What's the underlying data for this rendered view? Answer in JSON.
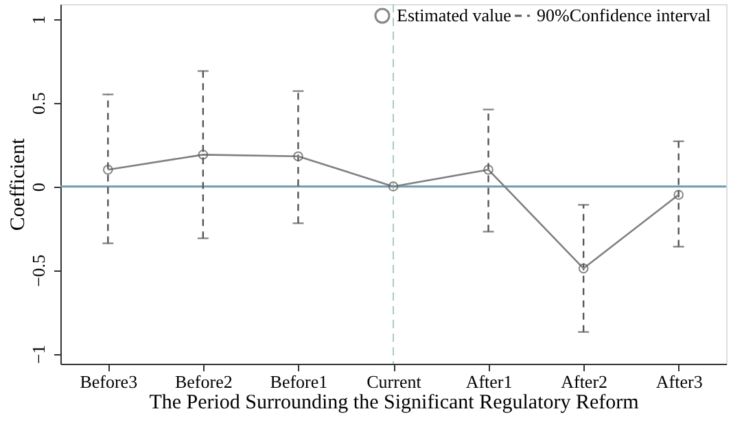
{
  "chart_data": {
    "type": "line",
    "xlabel": "The Period Surrounding the Significant Regulatory Reform",
    "ylabel": "Coefficient",
    "categories": [
      "Before3",
      "Before2",
      "Before1",
      "Current",
      "After1",
      "After2",
      "After3"
    ],
    "series": [
      {
        "name": "Estimated value",
        "color": "#808080",
        "values": [
          0.1,
          0.19,
          0.18,
          0.0,
          0.1,
          -0.49,
          -0.05
        ],
        "errors": [
          [
            -0.34,
            0.55
          ],
          [
            -0.31,
            0.69
          ],
          [
            -0.22,
            0.57
          ],
          null,
          [
            -0.27,
            0.46
          ],
          [
            -0.87,
            -0.11
          ],
          [
            -0.36,
            0.27
          ]
        ]
      }
    ],
    "annotations": [
      "90%Confidence interval"
    ],
    "ylim": [
      -1.06,
      1.09
    ],
    "yticks": [
      -1,
      -0.5,
      0,
      0.5,
      1
    ],
    "ref_lines": [
      {
        "axis": "y",
        "value": 0,
        "color": "#6f9bb0",
        "line_style": "solid"
      },
      {
        "axis": "x",
        "value": "Current",
        "color": "#9fcfbf",
        "line_style": "dashed"
      }
    ],
    "marker": "circle",
    "line_style": "solid",
    "grid": false,
    "legend": "top right"
  }
}
